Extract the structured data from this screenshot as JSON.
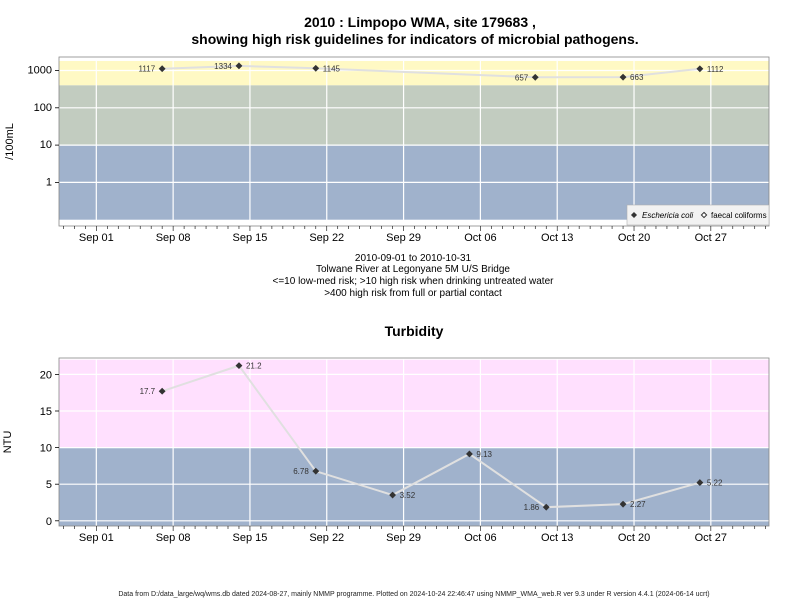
{
  "chart_data": [
    {
      "type": "line",
      "title_line1": "2010 : Limpopo WMA, site 179683 ,",
      "title_line2": "showing high risk guidelines for indicators of microbial pathogens.",
      "ylabel": "/100mL",
      "yscale": "log",
      "y_ticks": [
        "1",
        "10",
        "100",
        "1000"
      ],
      "x_ticks": [
        "Sep 01",
        "Sep 08",
        "Sep 15",
        "Sep 22",
        "Sep 29",
        "Oct 06",
        "Oct 13",
        "Oct 20",
        "Oct 27"
      ],
      "bands": [
        {
          "from": 400,
          "to": 1800,
          "color": "#fff9c4"
        },
        {
          "from": 10,
          "to": 400,
          "color": "#c2ccc0"
        },
        {
          "from": 0.1,
          "to": 10,
          "color": "#a0b2cc"
        }
      ],
      "series": [
        {
          "name": "Eschericia coli",
          "marker": "filled-diamond",
          "points": [
            {
              "x": "2010-09-07",
              "y": 1117
            },
            {
              "x": "2010-09-14",
              "y": 1334
            },
            {
              "x": "2010-09-21",
              "y": 1145
            },
            {
              "x": "2010-10-11",
              "y": 657
            },
            {
              "x": "2010-10-19",
              "y": 663
            },
            {
              "x": "2010-10-26",
              "y": 1112
            }
          ]
        },
        {
          "name": "faecal coliforms",
          "marker": "open-diamond",
          "points": []
        }
      ],
      "subtitle_lines": [
        "2010-09-01 to 2010-10-31",
        "Tolwane River at Legonyane 5M U/S Bridge",
        "<=10 low-med risk; >10 high risk when drinking untreated water",
        ">400 high risk from full or partial contact"
      ],
      "legend_position": "bottom-right",
      "grid": true
    },
    {
      "type": "line",
      "title": "Turbidity",
      "ylabel": "NTU",
      "ylim": [
        -0.8,
        22
      ],
      "y_ticks": [
        0,
        5,
        10,
        15,
        20
      ],
      "x_ticks": [
        "Sep 01",
        "Sep 08",
        "Sep 15",
        "Sep 22",
        "Sep 29",
        "Oct 06",
        "Oct 13",
        "Oct 20",
        "Oct 27"
      ],
      "bands": [
        {
          "from": 10,
          "to": 22,
          "color": "#ffe0fe"
        },
        {
          "from": -0.8,
          "to": 10,
          "color": "#a0b2cc"
        }
      ],
      "series": [
        {
          "marker": "filled-diamond",
          "points": [
            {
              "x": "2010-09-07",
              "y": 17.7
            },
            {
              "x": "2010-09-14",
              "y": 21.2
            },
            {
              "x": "2010-09-21",
              "y": 6.78
            },
            {
              "x": "2010-09-28",
              "y": 3.52
            },
            {
              "x": "2010-10-05",
              "y": 9.13
            },
            {
              "x": "2010-10-12",
              "y": 1.86
            },
            {
              "x": "2010-10-19",
              "y": 2.27
            },
            {
              "x": "2010-10-26",
              "y": 5.22
            }
          ]
        }
      ],
      "grid": true
    }
  ],
  "footer": "Data from D:/data_large/wq/wms.db dated 2024-08-27, mainly NMMP programme. Plotted on 2024-10-24 22:46:47 using NMMP_WMA_web.R ver 9.3 under R version 4.4.1 (2024-06-14 ucrt)",
  "colors": {
    "line": "#e0e0e0",
    "marker": "#333333",
    "grid": "#ffffff",
    "frame": "#888888"
  }
}
